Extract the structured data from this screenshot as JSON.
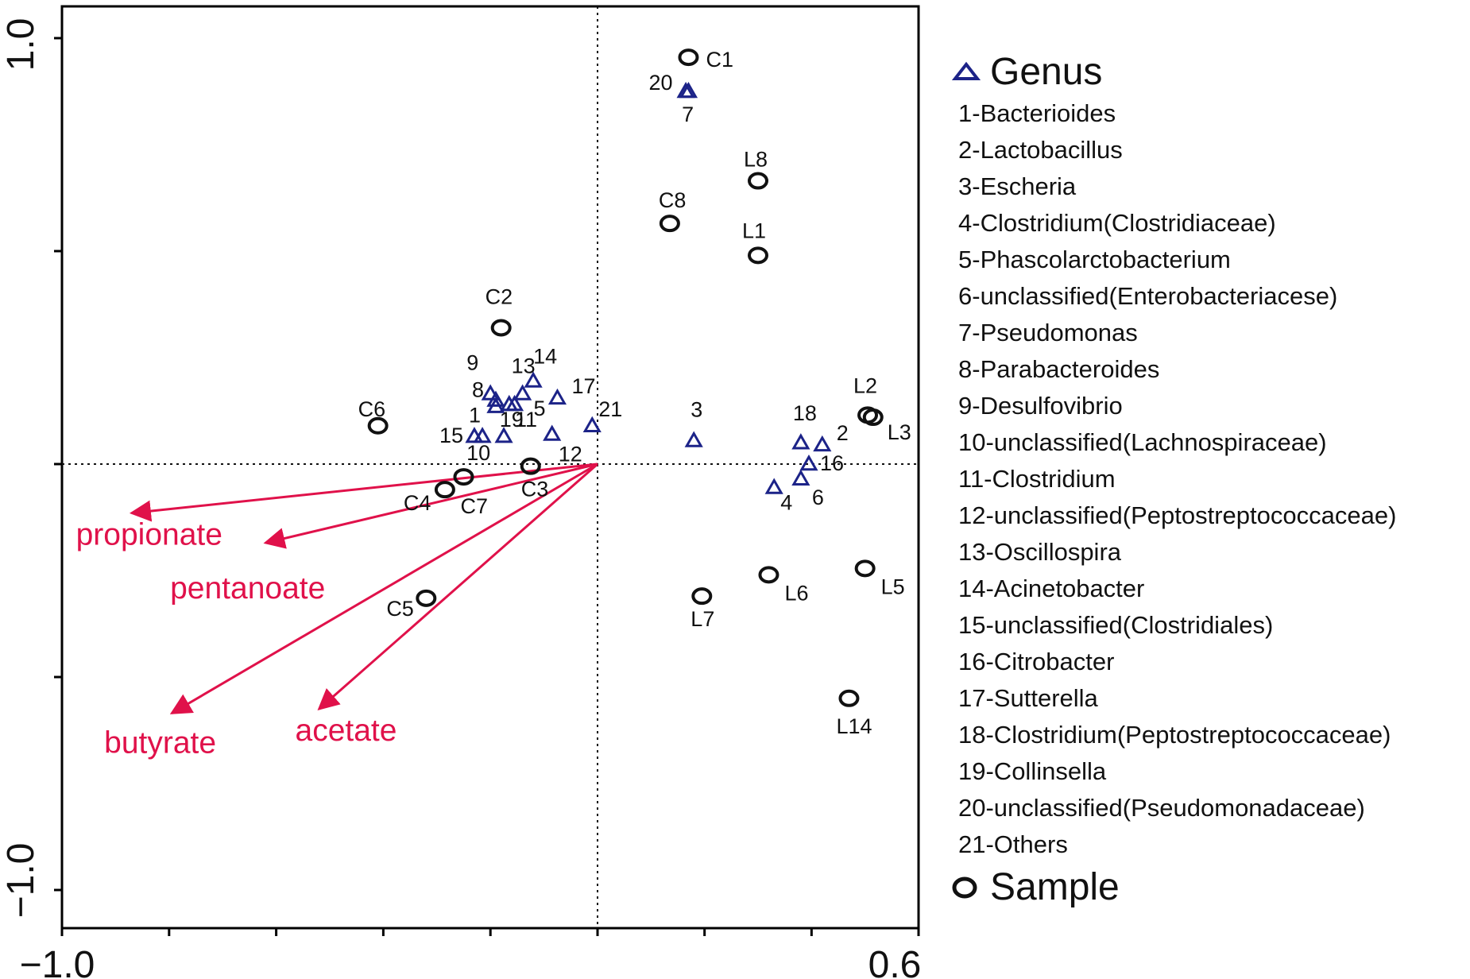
{
  "chart_data": {
    "type": "scatter",
    "xlim": [
      -1.0,
      0.6
    ],
    "ylim": [
      -1.0,
      1.0
    ],
    "x_tick_labels": [
      "−1.0",
      "0.6"
    ],
    "y_tick_labels": [
      "1.0",
      "−1.0"
    ],
    "grid": false,
    "reference_lines": "dotted lines at x=0 and y=0",
    "legend_position": "right",
    "genus_points": [
      {
        "label": "1",
        "x": -0.19,
        "y": 0.135
      },
      {
        "label": "2",
        "x": 0.42,
        "y": 0.045
      },
      {
        "label": "3",
        "x": 0.18,
        "y": 0.055
      },
      {
        "label": "4",
        "x": 0.33,
        "y": -0.055
      },
      {
        "label": "5",
        "x": -0.155,
        "y": 0.14
      },
      {
        "label": "6",
        "x": 0.38,
        "y": -0.035
      },
      {
        "label": "7",
        "x": 0.165,
        "y": 0.875
      },
      {
        "label": "8",
        "x": -0.19,
        "y": 0.15
      },
      {
        "label": "9",
        "x": -0.2,
        "y": 0.165
      },
      {
        "label": "10",
        "x": -0.215,
        "y": 0.065
      },
      {
        "label": "11",
        "x": -0.175,
        "y": 0.065
      },
      {
        "label": "12",
        "x": -0.085,
        "y": 0.07
      },
      {
        "label": "13",
        "x": -0.14,
        "y": 0.165
      },
      {
        "label": "14",
        "x": -0.12,
        "y": 0.195
      },
      {
        "label": "15",
        "x": -0.23,
        "y": 0.065
      },
      {
        "label": "16",
        "x": 0.395,
        "y": 0.0
      },
      {
        "label": "17",
        "x": -0.075,
        "y": 0.155
      },
      {
        "label": "18",
        "x": 0.38,
        "y": 0.05
      },
      {
        "label": "19",
        "x": -0.165,
        "y": 0.14
      },
      {
        "label": "20",
        "x": 0.17,
        "y": 0.875
      },
      {
        "label": "21",
        "x": -0.01,
        "y": 0.09
      }
    ],
    "sample_points": [
      {
        "label": "C1",
        "x": 0.17,
        "y": 0.955
      },
      {
        "label": "C2",
        "x": -0.18,
        "y": 0.32
      },
      {
        "label": "C3",
        "x": -0.125,
        "y": -0.005
      },
      {
        "label": "C4",
        "x": -0.285,
        "y": -0.06
      },
      {
        "label": "C5",
        "x": -0.32,
        "y": -0.315
      },
      {
        "label": "C6",
        "x": -0.41,
        "y": 0.09
      },
      {
        "label": "C7",
        "x": -0.25,
        "y": -0.03
      },
      {
        "label": "C8",
        "x": 0.135,
        "y": 0.565
      },
      {
        "label": "L1",
        "x": 0.3,
        "y": 0.49
      },
      {
        "label": "L2",
        "x": 0.505,
        "y": 0.115
      },
      {
        "label": "L3",
        "x": 0.515,
        "y": 0.11
      },
      {
        "label": "L5",
        "x": 0.5,
        "y": -0.245
      },
      {
        "label": "L6",
        "x": 0.32,
        "y": -0.26
      },
      {
        "label": "L7",
        "x": 0.195,
        "y": -0.31
      },
      {
        "label": "L8",
        "x": 0.3,
        "y": 0.665
      },
      {
        "label": "L14",
        "x": 0.47,
        "y": -0.55
      }
    ],
    "vectors": [
      {
        "label": "propionate",
        "x": -0.87,
        "y": -0.115
      },
      {
        "label": "pentanoate",
        "x": -0.62,
        "y": -0.185
      },
      {
        "label": "butyrate",
        "x": -0.795,
        "y": -0.585
      },
      {
        "label": "acetate",
        "x": -0.52,
        "y": -0.575
      }
    ],
    "colors": {
      "genus": "#1c2388",
      "sample": "#111111",
      "vector": "#e0114a",
      "axis": "#000000"
    }
  },
  "legend": {
    "genus_title": "Genus",
    "genus_items": [
      "1-Bacterioides",
      "2-Lactobacillus",
      "3-Escheria",
      "4-Clostridium(Clostridiaceae)",
      "5-Phascolarctobacterium",
      "6-unclassified(Enterobacteriacese)",
      "7-Pseudomonas",
      "8-Parabacteroides",
      "9-Desulfovibrio",
      "10-unclassified(Lachnospiraceae)",
      "11-Clostridium",
      "12-unclassified(Peptostreptococcaceae)",
      "13-Oscillospira",
      "14-Acinetobacter",
      "15-unclassified(Clostridiales)",
      "16-Citrobacter",
      "17-Sutterella",
      "18-Clostridium(Peptostreptococcaceae)",
      "19-Collinsella",
      "20-unclassified(Pseudomonadaceae)",
      "21-Others"
    ],
    "sample_title": "Sample",
    "genus_marker_icon": "triangle-icon",
    "sample_marker_icon": "ellipse-icon"
  }
}
